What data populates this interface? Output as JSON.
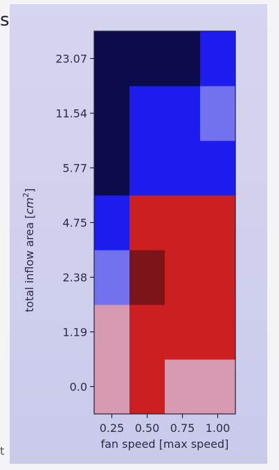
{
  "edge_text": {
    "top": "s",
    "bottom": "t"
  },
  "chart_data": {
    "type": "heatmap",
    "title": "",
    "xlabel": "fan speed [max speed]",
    "ylabel_prefix": "total inflow area [",
    "ylabel_base": "cm",
    "ylabel_exp": "2",
    "ylabel_suffix": "]",
    "x_categories": [
      "0.25",
      "0.50",
      "0.75",
      "1.00"
    ],
    "y_categories": [
      "0.0",
      "1.19",
      "2.38",
      "4.75",
      "5.77",
      "11.54",
      "23.07"
    ],
    "colors": {
      "navy": "#0c0c4c",
      "blue": "#1c1cee",
      "light_blue": "#7272ef",
      "red": "#cc2020",
      "dark_red": "#7a1418",
      "pink": "#d79ab0"
    },
    "cells": [
      [
        "pink",
        "red",
        "pink",
        "pink"
      ],
      [
        "pink",
        "red",
        "red",
        "red"
      ],
      [
        "light_blue",
        "dark_red",
        "red",
        "red"
      ],
      [
        "blue",
        "red",
        "red",
        "red"
      ],
      [
        "navy",
        "blue",
        "blue",
        "blue"
      ],
      [
        "navy",
        "blue",
        "blue",
        "light_blue"
      ],
      [
        "navy",
        "navy",
        "navy",
        "blue"
      ]
    ],
    "colorbar": false,
    "grid": false
  }
}
